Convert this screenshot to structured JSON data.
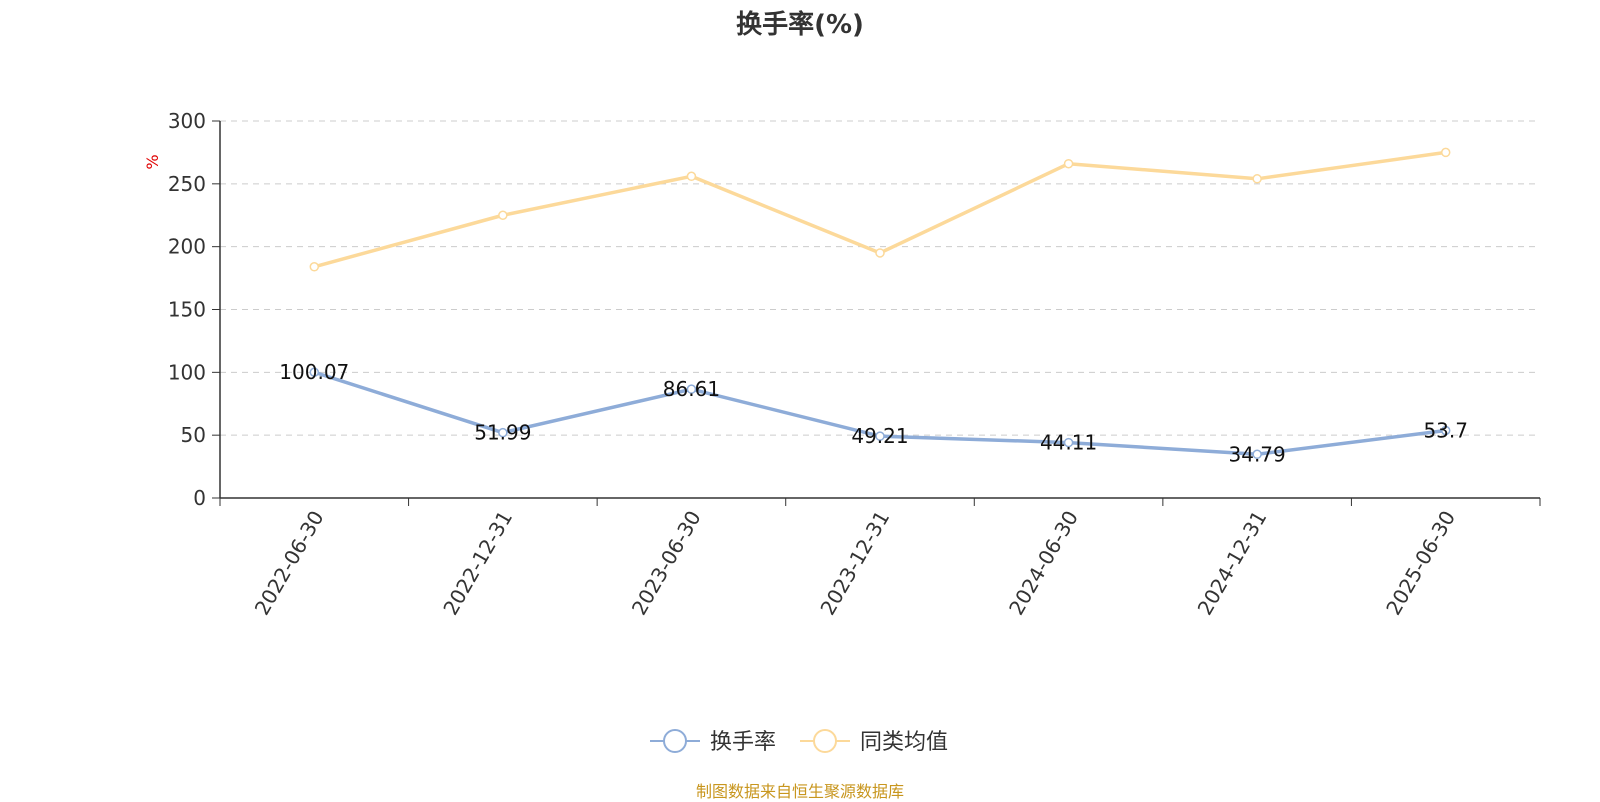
{
  "chart_data": {
    "type": "line",
    "title": "换手率(%)",
    "ylabel": "%",
    "xlabel": "",
    "categories": [
      "2022-06-30",
      "2022-12-31",
      "2023-06-30",
      "2023-12-31",
      "2024-06-30",
      "2024-12-31",
      "2025-06-30"
    ],
    "series": [
      {
        "name": "换手率",
        "values": [
          100.07,
          51.99,
          86.61,
          49.21,
          44.11,
          34.79,
          53.7
        ],
        "data_labels": [
          "100.07",
          "51.99",
          "86.61",
          "49.21",
          "44.11",
          "34.79",
          "53.7"
        ],
        "color": "#8eacd8"
      },
      {
        "name": "同类均值",
        "values": [
          184,
          225,
          256,
          195,
          266,
          254,
          275
        ],
        "color": "#fcd99a"
      }
    ],
    "ylim": [
      0,
      300
    ],
    "yticks": [
      "0",
      "50",
      "100",
      "150",
      "200",
      "250",
      "300"
    ],
    "grid": true,
    "legend_position": "bottom",
    "source": "制图数据来自恒生聚源数据库",
    "colors": {
      "axis": "#333333",
      "grid": "#cccccc",
      "ylabel": "#e00000",
      "source": "#c8961e"
    }
  }
}
